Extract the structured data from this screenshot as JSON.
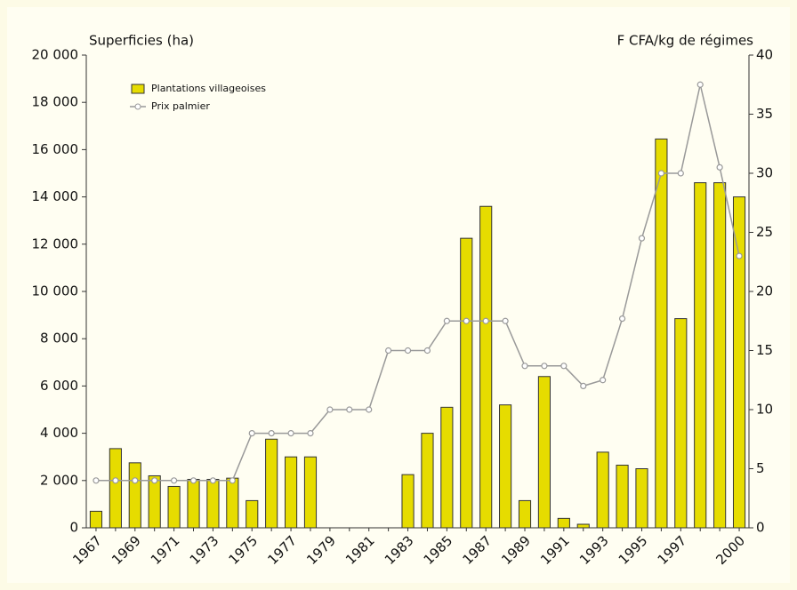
{
  "chart_data": {
    "type": "bar",
    "y_label": "Superficies (ha)",
    "y2_label": "F CFA/kg de régimes",
    "categories": [
      "1967",
      null,
      "1969",
      null,
      "1971",
      null,
      "1973",
      null,
      "1975",
      null,
      "1977",
      null,
      "1979",
      null,
      "1981",
      null,
      "1983",
      null,
      "1985",
      null,
      "1987",
      null,
      "1989",
      null,
      "1991",
      null,
      "1993",
      null,
      "1995",
      null,
      "1997",
      null,
      null,
      "2000"
    ],
    "series": [
      {
        "name": "Plantations villageoises",
        "type": "bar",
        "color": "#e6dc00",
        "values": [
          700,
          3350,
          2750,
          2200,
          1750,
          2050,
          2050,
          2100,
          1150,
          3750,
          3000,
          3000,
          null,
          null,
          null,
          null,
          2250,
          4000,
          5100,
          12250,
          13600,
          5200,
          1150,
          6400,
          400,
          150,
          3200,
          2650,
          2500,
          16450,
          8850,
          14600,
          14600,
          14000
        ]
      },
      {
        "name": "Prix palmier",
        "type": "line",
        "axis": "y2",
        "color": "#999999",
        "values": [
          4,
          4,
          4,
          4,
          4,
          4,
          4,
          4,
          8,
          8,
          8,
          8,
          10,
          10,
          10,
          15,
          15,
          15,
          17.5,
          17.5,
          17.5,
          17.5,
          13.7,
          13.7,
          13.7,
          12,
          12.5,
          17.7,
          24.5,
          30,
          30,
          37.5,
          30.5,
          23
        ]
      }
    ],
    "ylim": [
      0,
      20000
    ],
    "yticks": [
      0,
      {
        "value": 2000,
        "label": "2 000"
      },
      {
        "value": 4000,
        "label": "4 000"
      },
      {
        "value": 6000,
        "label": "6 000"
      },
      {
        "value": 8000,
        "label": "8 000"
      },
      {
        "value": 10000,
        "label": "10 000"
      },
      {
        "value": 12000,
        "label": "12 000"
      },
      {
        "value": 14000,
        "label": "14 000"
      },
      {
        "value": 16000,
        "label": "16 000"
      },
      {
        "value": 18000,
        "label": "18 000"
      },
      {
        "value": 20000,
        "label": "20 000"
      }
    ],
    "y2lim": [
      0,
      40
    ],
    "y2ticks": [
      0,
      5,
      10,
      15,
      20,
      25,
      30,
      35,
      40
    ],
    "legend": "upper left"
  }
}
